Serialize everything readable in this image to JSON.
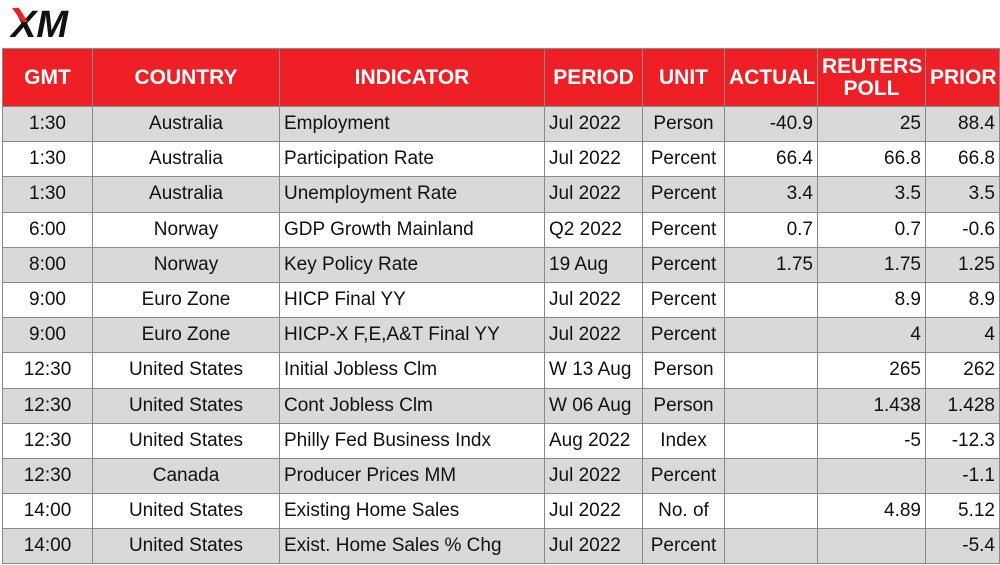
{
  "brand": {
    "logo_text": "XM",
    "accent_color": "#ee2025"
  },
  "headers": {
    "gmt": "GMT",
    "country": "COUNTRY",
    "indicator": "INDICATOR",
    "period": "PERIOD",
    "unit": "UNIT",
    "actual": "ACTUAL",
    "reuters_line1": "REUTERS",
    "reuters_line2": "POLL",
    "prior": "PRIOR"
  },
  "rows": [
    {
      "gmt": "1:30",
      "country": "Australia",
      "indicator": "Employment",
      "period": "Jul 2022",
      "unit": "Person",
      "actual": "-40.9",
      "poll": "25",
      "prior": "88.4"
    },
    {
      "gmt": "1:30",
      "country": "Australia",
      "indicator": "Participation Rate",
      "period": "Jul 2022",
      "unit": "Percent",
      "actual": "66.4",
      "poll": "66.8",
      "prior": "66.8"
    },
    {
      "gmt": "1:30",
      "country": "Australia",
      "indicator": "Unemployment Rate",
      "period": "Jul 2022",
      "unit": "Percent",
      "actual": "3.4",
      "poll": "3.5",
      "prior": "3.5"
    },
    {
      "gmt": "6:00",
      "country": "Norway",
      "indicator": "GDP Growth Mainland",
      "period": "Q2 2022",
      "unit": "Percent",
      "actual": "0.7",
      "poll": "0.7",
      "prior": "-0.6"
    },
    {
      "gmt": "8:00",
      "country": "Norway",
      "indicator": "Key Policy Rate",
      "period": "19 Aug",
      "unit": "Percent",
      "actual": "1.75",
      "poll": "1.75",
      "prior": "1.25"
    },
    {
      "gmt": "9:00",
      "country": "Euro Zone",
      "indicator": "HICP Final YY",
      "period": "Jul 2022",
      "unit": "Percent",
      "actual": "",
      "poll": "8.9",
      "prior": "8.9"
    },
    {
      "gmt": "9:00",
      "country": "Euro Zone",
      "indicator": "HICP-X F,E,A&T Final YY",
      "period": "Jul 2022",
      "unit": "Percent",
      "actual": "",
      "poll": "4",
      "prior": "4"
    },
    {
      "gmt": "12:30",
      "country": "United States",
      "indicator": "Initial Jobless Clm",
      "period": "W 13 Aug",
      "unit": "Person",
      "actual": "",
      "poll": "265",
      "prior": "262"
    },
    {
      "gmt": "12:30",
      "country": "United States",
      "indicator": "Cont Jobless Clm",
      "period": "W 06 Aug",
      "unit": "Person",
      "actual": "",
      "poll": "1.438",
      "prior": "1.428"
    },
    {
      "gmt": "12:30",
      "country": "United States",
      "indicator": "Philly Fed Business Indx",
      "period": "Aug 2022",
      "unit": "Index",
      "actual": "",
      "poll": "-5",
      "prior": "-12.3"
    },
    {
      "gmt": "12:30",
      "country": "Canada",
      "indicator": "Producer Prices MM",
      "period": "Jul 2022",
      "unit": "Percent",
      "actual": "",
      "poll": "",
      "prior": "-1.1"
    },
    {
      "gmt": "14:00",
      "country": "United States",
      "indicator": "Existing Home Sales",
      "period": "Jul 2022",
      "unit": "No. of",
      "actual": "",
      "poll": "4.89",
      "prior": "5.12"
    },
    {
      "gmt": "14:00",
      "country": "United States",
      "indicator": "Exist. Home Sales % Chg",
      "period": "Jul 2022",
      "unit": "Percent",
      "actual": "",
      "poll": "",
      "prior": "-5.4"
    }
  ]
}
